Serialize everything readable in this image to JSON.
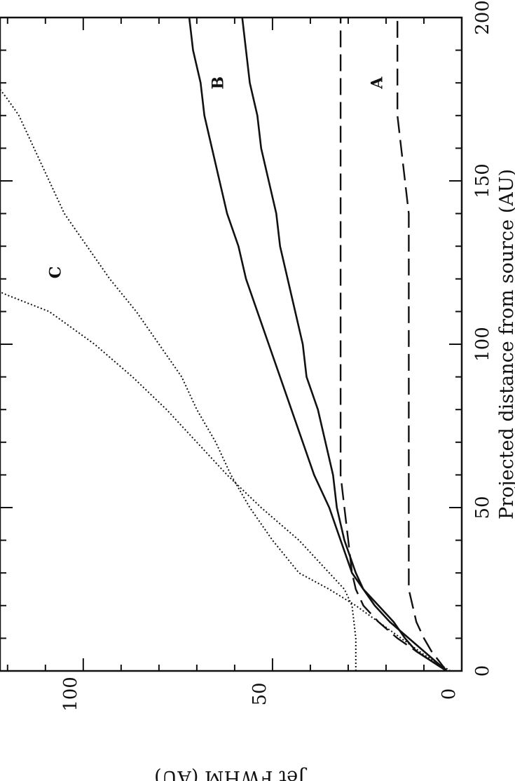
{
  "chart_data": {
    "type": "line",
    "title": "",
    "xlabel": "Projected distance from source (AU)",
    "ylabel": "Jet FWHM (AU)",
    "xlim": [
      0,
      200
    ],
    "ylim": [
      0,
      122
    ],
    "x_ticks": [
      "0",
      "50",
      "100",
      "150",
      "200"
    ],
    "y_ticks": [
      "0",
      "50",
      "100"
    ],
    "series": [
      {
        "name": "A",
        "style": "dashed",
        "values": [
          [
            0,
            4
          ],
          [
            3,
            6
          ],
          [
            6,
            8
          ],
          [
            10,
            10
          ],
          [
            15,
            12
          ],
          [
            20,
            13
          ],
          [
            25,
            14
          ],
          [
            30,
            14
          ],
          [
            40,
            14
          ],
          [
            50,
            14
          ],
          [
            60,
            14
          ],
          [
            80,
            14
          ],
          [
            100,
            14
          ],
          [
            110,
            14
          ],
          [
            120,
            14
          ],
          [
            130,
            14
          ],
          [
            140,
            14
          ],
          [
            150,
            15
          ],
          [
            160,
            16
          ],
          [
            170,
            17
          ],
          [
            180,
            17
          ],
          [
            190,
            17
          ],
          [
            200,
            17
          ]
        ]
      },
      {
        "name": "A",
        "style": "dashed",
        "values": [
          [
            0,
            4
          ],
          [
            3,
            8
          ],
          [
            6,
            12
          ],
          [
            10,
            17
          ],
          [
            15,
            22
          ],
          [
            20,
            26
          ],
          [
            25,
            28
          ],
          [
            30,
            29
          ],
          [
            40,
            30
          ],
          [
            50,
            31
          ],
          [
            60,
            32
          ],
          [
            80,
            32
          ],
          [
            100,
            32
          ],
          [
            110,
            32
          ],
          [
            120,
            32
          ],
          [
            130,
            32
          ],
          [
            140,
            32
          ],
          [
            150,
            32
          ],
          [
            160,
            32
          ],
          [
            170,
            32
          ],
          [
            180,
            32
          ],
          [
            190,
            32
          ],
          [
            200,
            32
          ]
        ]
      },
      {
        "name": "B",
        "style": "solid",
        "values": [
          [
            0,
            4
          ],
          [
            3,
            7
          ],
          [
            6,
            10
          ],
          [
            10,
            14
          ],
          [
            15,
            19
          ],
          [
            20,
            23
          ],
          [
            25,
            26
          ],
          [
            30,
            28
          ],
          [
            40,
            31
          ],
          [
            50,
            33
          ],
          [
            60,
            34
          ],
          [
            70,
            36
          ],
          [
            80,
            38
          ],
          [
            90,
            41
          ],
          [
            100,
            42
          ],
          [
            110,
            44
          ],
          [
            120,
            46
          ],
          [
            130,
            48
          ],
          [
            140,
            49
          ],
          [
            150,
            51
          ],
          [
            160,
            53
          ],
          [
            170,
            54
          ],
          [
            180,
            56
          ],
          [
            190,
            57
          ],
          [
            200,
            58
          ]
        ]
      },
      {
        "name": "B",
        "style": "solid",
        "values": [
          [
            0,
            4
          ],
          [
            3,
            8
          ],
          [
            6,
            12
          ],
          [
            10,
            15
          ],
          [
            15,
            18
          ],
          [
            20,
            22
          ],
          [
            25,
            26
          ],
          [
            30,
            29
          ],
          [
            40,
            32
          ],
          [
            50,
            35
          ],
          [
            60,
            39
          ],
          [
            70,
            42
          ],
          [
            80,
            45
          ],
          [
            90,
            48
          ],
          [
            100,
            51
          ],
          [
            110,
            54
          ],
          [
            120,
            57
          ],
          [
            130,
            59
          ],
          [
            140,
            62
          ],
          [
            150,
            64
          ],
          [
            160,
            66
          ],
          [
            170,
            68
          ],
          [
            180,
            69
          ],
          [
            190,
            71
          ],
          [
            200,
            72
          ]
        ]
      },
      {
        "name": "C",
        "style": "dotted",
        "values": [
          [
            0,
            28
          ],
          [
            10,
            28
          ],
          [
            20,
            29
          ],
          [
            25,
            31
          ],
          [
            30,
            35
          ],
          [
            40,
            43
          ],
          [
            50,
            53
          ],
          [
            60,
            62
          ],
          [
            70,
            70
          ],
          [
            80,
            78
          ],
          [
            90,
            87
          ],
          [
            100,
            97
          ],
          [
            110,
            109
          ],
          [
            115,
            120
          ],
          [
            116,
            122
          ]
        ]
      },
      {
        "name": "C",
        "style": "dotted",
        "values": [
          [
            0,
            3
          ],
          [
            5,
            10
          ],
          [
            10,
            16
          ],
          [
            15,
            22
          ],
          [
            20,
            28
          ],
          [
            25,
            35
          ],
          [
            30,
            43
          ],
          [
            40,
            50
          ],
          [
            50,
            56
          ],
          [
            60,
            61
          ],
          [
            70,
            65
          ],
          [
            80,
            70
          ],
          [
            90,
            74
          ],
          [
            100,
            80
          ],
          [
            110,
            86
          ],
          [
            120,
            93
          ],
          [
            130,
            99
          ],
          [
            140,
            105
          ],
          [
            150,
            109
          ],
          [
            160,
            113
          ],
          [
            170,
            117
          ],
          [
            175,
            120
          ],
          [
            178,
            122
          ]
        ]
      }
    ],
    "curve_labels": [
      {
        "text": "A",
        "x": 180,
        "y": 21
      },
      {
        "text": "B",
        "x": 180,
        "y": 63
      },
      {
        "text": "C",
        "x": 122,
        "y": 106
      }
    ]
  }
}
